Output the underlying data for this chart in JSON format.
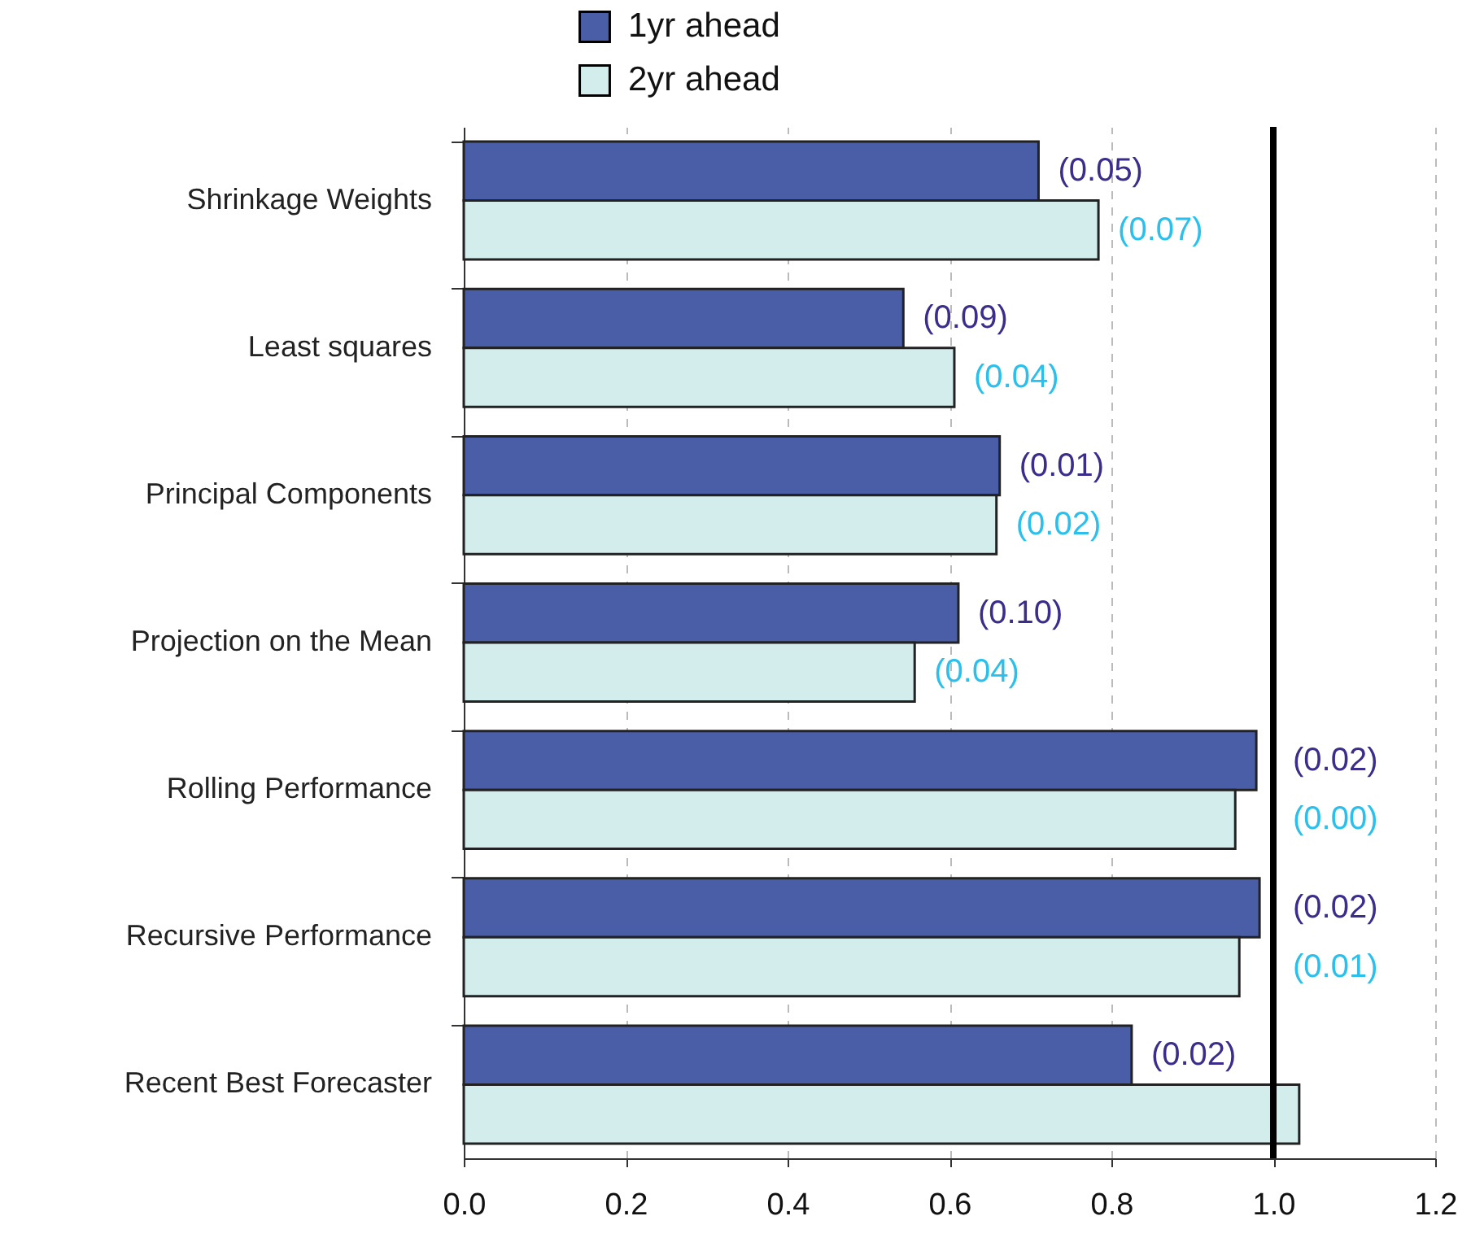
{
  "chart_data": {
    "type": "bar",
    "orientation": "horizontal",
    "categories": [
      "Shrinkage Weights",
      "Least squares",
      "Principal Components",
      "Projection on the Mean",
      "Rolling Performance",
      "Recursive Performance",
      "Recent Best Forecaster"
    ],
    "series": [
      {
        "name": "1yr ahead",
        "color": "#4a5ea8",
        "values": [
          0.71,
          0.543,
          0.662,
          0.611,
          0.979,
          0.983,
          0.825
        ]
      },
      {
        "name": "2yr ahead",
        "color": "#d3ecec",
        "values": [
          0.784,
          0.606,
          0.658,
          0.557,
          0.953,
          0.958,
          1.032
        ]
      }
    ],
    "annotations": [
      {
        "text": "(0.05)",
        "x": 0.71,
        "y": "Shrinkage Weights"
      },
      {
        "text": "(0.07)",
        "x": 0.784,
        "y": "Shrinkage Weights"
      },
      {
        "text": "(0.09)",
        "x": 0.543,
        "y": "Least squares"
      },
      {
        "text": "(0.04)",
        "x": 0.606,
        "y": "Least squares"
      },
      {
        "text": "(0.01)",
        "x": 0.662,
        "y": "Principal Components"
      },
      {
        "text": "(0.02)",
        "x": 0.658,
        "y": "Principal Components"
      },
      {
        "text": "(0.10)",
        "x": 0.611,
        "y": "Projection on the Mean"
      },
      {
        "text": "(0.04)",
        "x": 0.557,
        "y": "Projection on the Mean"
      },
      {
        "text": "(0.02)",
        "x": 0.979,
        "y": "Rolling Performance"
      },
      {
        "text": "(0.00)",
        "x": 0.953,
        "y": "Rolling Performance"
      },
      {
        "text": "(0.02)",
        "x": 0.983,
        "y": "Recursive Performance"
      },
      {
        "text": "(0.01)",
        "x": 0.958,
        "y": "Recursive Performance"
      },
      {
        "text": "(0.02)",
        "x": 0.825,
        "y": "Recent Best Forecaster"
      }
    ],
    "xlim": [
      0,
      1.2
    ],
    "xticks": [
      {
        "value": 0,
        "label": "0.0"
      },
      {
        "value": 0.2,
        "label": "0.2"
      },
      {
        "value": 0.4,
        "label": "0.4"
      },
      {
        "value": 0.6,
        "label": "0.6"
      },
      {
        "value": 0.8,
        "label": "0.8"
      },
      {
        "value": 1,
        "label": "1.0"
      },
      {
        "value": 1.2,
        "label": "1.2"
      }
    ],
    "grid": "x",
    "legend": "top",
    "ref_lines": [
      {
        "axis": "x",
        "value": 1,
        "color": "#000000"
      }
    ]
  }
}
